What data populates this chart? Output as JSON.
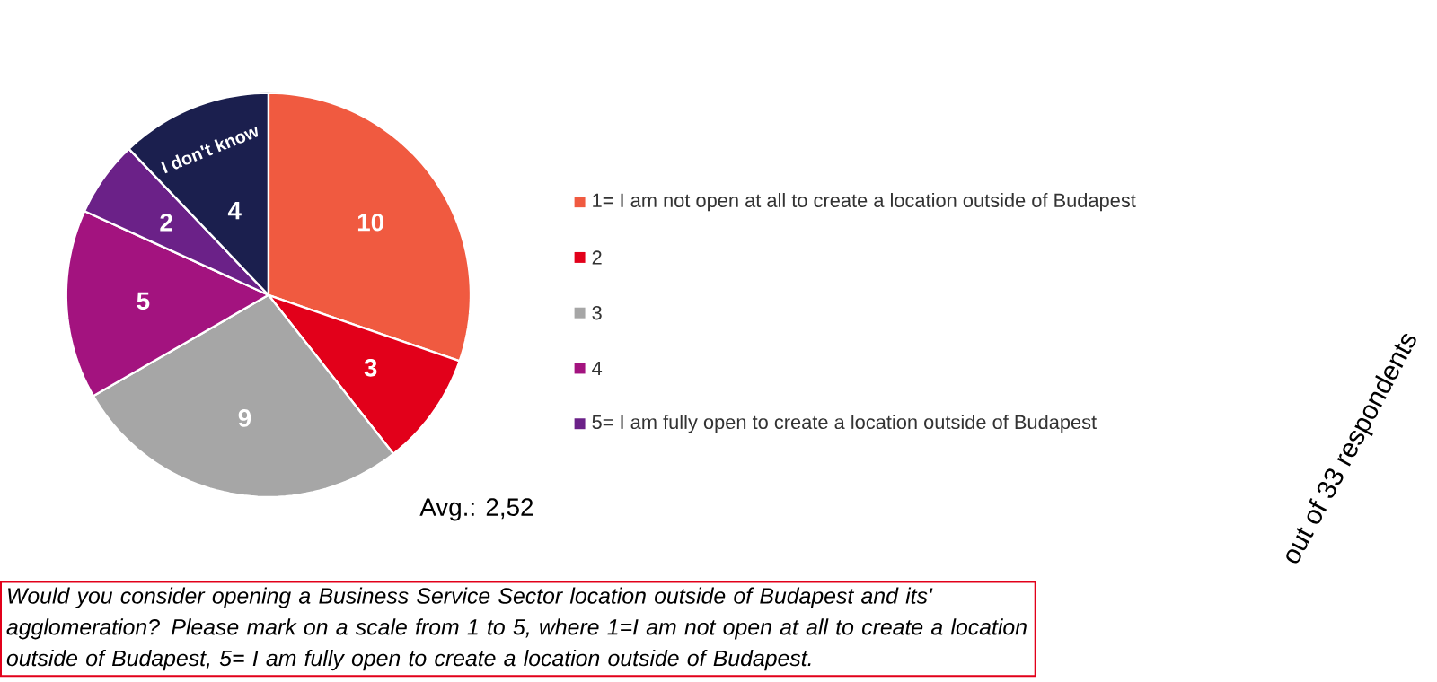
{
  "chart_data": {
    "type": "pie",
    "categories": [
      "1= I am not open at all to create a location outside of Budapest",
      "2",
      "3",
      "4",
      "5= I am fully open to create a location outside of Budapest",
      "I don't know"
    ],
    "values": [
      10,
      3,
      9,
      5,
      2,
      4
    ],
    "colors": [
      "#f05a40",
      "#e2001a",
      "#a6a6a6",
      "#a3137f",
      "#6b2188",
      "#1b1f4e"
    ],
    "data_labels": true,
    "legend": "right",
    "annotations": [
      "Avg.: 2,52",
      "out of 33 respondents",
      "Would you consider opening a Business Service Sector location outside of Budapest and its' agglomeration? Please mark on a scale from 1 to 5, where 1=I am not open at all to create a location outside of Budapest, 5= I am fully open to create a location outside of Budapest."
    ]
  }
}
